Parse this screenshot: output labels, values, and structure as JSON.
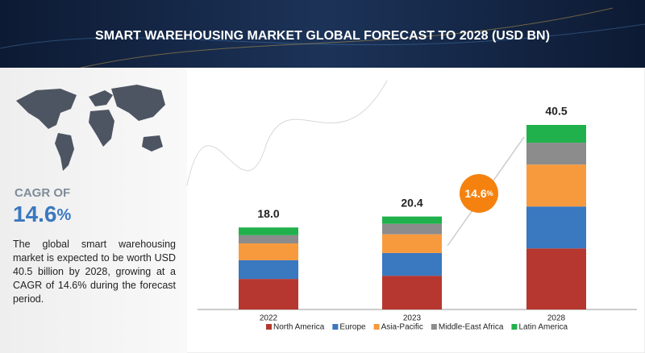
{
  "header": {
    "title": "SMART WAREHOUSING MARKET GLOBAL FORECAST TO 2028 (USD BN)"
  },
  "sidebar": {
    "cagr_label": "CAGR OF",
    "cagr_value": "14.6",
    "cagr_unit": "%",
    "description": "The global smart warehousing market is expected to be worth USD 40.5 billion by 2028, growing at a CAGR of 14.6% during the forecast period."
  },
  "chart_data": {
    "type": "stacked_bar",
    "categories": [
      "2022",
      "2023",
      "2028"
    ],
    "series": [
      {
        "name": "North America",
        "color": "#b5372f",
        "values": [
          6.7,
          7.4,
          13.4
        ]
      },
      {
        "name": "Europe",
        "color": "#3a78c0",
        "values": [
          4.1,
          5.0,
          9.2
        ]
      },
      {
        "name": "Asia-Pacific",
        "color": "#f79a3e",
        "values": [
          3.7,
          4.1,
          9.2
        ]
      },
      {
        "name": "Middle-East Africa",
        "color": "#8c8c8c",
        "values": [
          1.8,
          2.3,
          4.8
        ]
      },
      {
        "name": "Latin America",
        "color": "#21b14c",
        "values": [
          1.7,
          1.6,
          3.9
        ]
      }
    ],
    "totals": [
      18.0,
      20.4,
      40.5
    ],
    "total_labels": [
      "18.0",
      "20.4",
      "40.5"
    ],
    "cagr_bubble": {
      "value": "14.6",
      "unit": "%",
      "color": "#f5820f"
    },
    "legend": "bottom"
  }
}
